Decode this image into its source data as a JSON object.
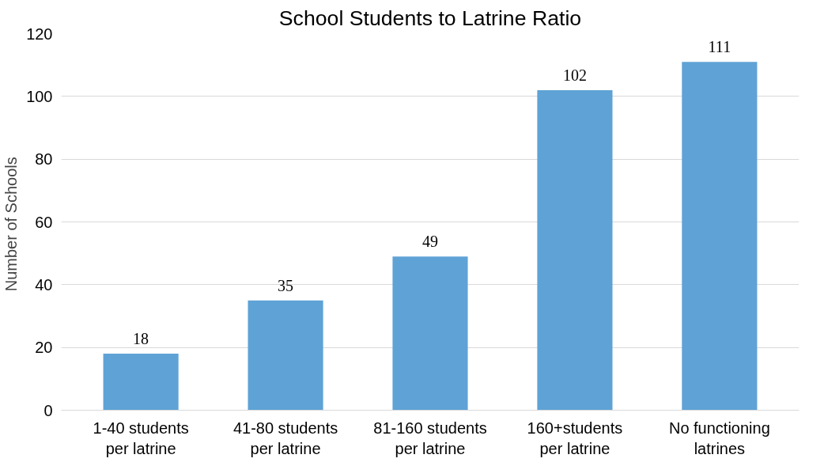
{
  "chart_data": {
    "type": "bar",
    "title": "School Students to Latrine Ratio",
    "ylabel": "Number of  Schools",
    "categories": [
      "1-40 students\nper latrine",
      "41-80 students\nper latrine",
      "81-160 students\nper latrine",
      "160+students\nper latrine",
      "No functioning\nlatrines"
    ],
    "values": [
      18,
      35,
      49,
      102,
      111
    ],
    "color": "#5fa2d6",
    "ylim": [
      0,
      120
    ],
    "yticks": [
      0,
      20,
      40,
      60,
      80,
      100,
      120
    ],
    "grid": "y",
    "data_labels": true
  }
}
